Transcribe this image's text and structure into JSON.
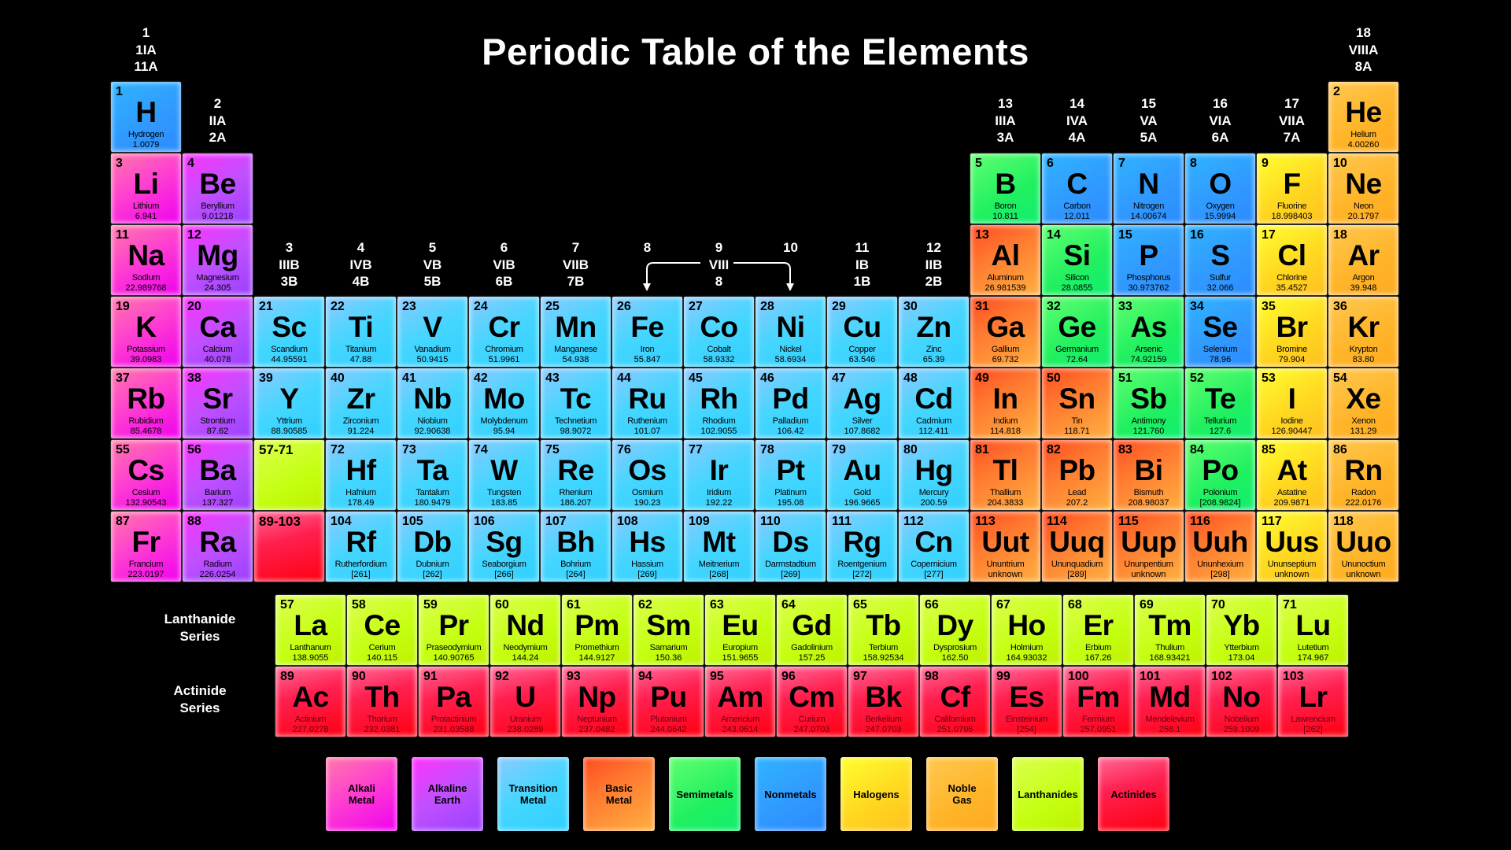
{
  "title": "Periodic Table of the Elements",
  "group_headers": [
    {
      "num": "1",
      "roman": "1IA",
      "us": "11A"
    },
    {
      "num": "2",
      "roman": "IIA",
      "us": "2A"
    },
    {
      "num": "3",
      "roman": "IIIB",
      "us": "3B"
    },
    {
      "num": "4",
      "roman": "IVB",
      "us": "4B"
    },
    {
      "num": "5",
      "roman": "VB",
      "us": "5B"
    },
    {
      "num": "6",
      "roman": "VIB",
      "us": "6B"
    },
    {
      "num": "7",
      "roman": "VIIB",
      "us": "7B"
    },
    {
      "num": "8",
      "roman": "",
      "us": ""
    },
    {
      "num": "9",
      "roman": "VIII",
      "us": "8"
    },
    {
      "num": "10",
      "roman": "",
      "us": ""
    },
    {
      "num": "11",
      "roman": "IB",
      "us": "1B"
    },
    {
      "num": "12",
      "roman": "IIB",
      "us": "2B"
    },
    {
      "num": "13",
      "roman": "IIIA",
      "us": "3A"
    },
    {
      "num": "14",
      "roman": "IVA",
      "us": "4A"
    },
    {
      "num": "15",
      "roman": "VA",
      "us": "5A"
    },
    {
      "num": "16",
      "roman": "VIA",
      "us": "6A"
    },
    {
      "num": "17",
      "roman": "VIIA",
      "us": "7A"
    },
    {
      "num": "18",
      "roman": "VIIIA",
      "us": "8A"
    }
  ],
  "categories": {
    "a": {
      "label": "Alkali\nMetal",
      "color": "#ff40d0"
    },
    "e": {
      "label": "Alkaline\nEarth",
      "color": "#b048ff"
    },
    "t": {
      "label": "Transition\nMetal",
      "color": "#40d4ff"
    },
    "b": {
      "label": "Basic\nMetal",
      "color": "#ff7a30"
    },
    "s": {
      "label": "Semimetals",
      "color": "#20f060"
    },
    "n": {
      "label": "Nonmetals",
      "color": "#3098ff"
    },
    "h": {
      "label": "Halogens",
      "color": "#ffd820"
    },
    "g": {
      "label": "Noble\nGas",
      "color": "#ffb428"
    },
    "l": {
      "label": "Lanthanides",
      "color": "#c4ff10"
    },
    "c": {
      "label": "Actinides",
      "color": "#ff1030"
    }
  },
  "legend_order": [
    "a",
    "e",
    "t",
    "b",
    "s",
    "n",
    "h",
    "g",
    "l",
    "c"
  ],
  "placeholders": [
    {
      "label": "57-71",
      "cat": "l"
    },
    {
      "label": "89-103",
      "cat": "c"
    }
  ],
  "elements": [
    {
      "n": "1",
      "s": "H",
      "name": "Hydrogen",
      "mass": "1.0079",
      "cat": "n"
    },
    {
      "n": "2",
      "s": "He",
      "name": "Helium",
      "mass": "4.00260",
      "cat": "g"
    },
    {
      "n": "3",
      "s": "Li",
      "name": "Lithium",
      "mass": "6.941",
      "cat": "a"
    },
    {
      "n": "4",
      "s": "Be",
      "name": "Beryllium",
      "mass": "9.01218",
      "cat": "e"
    },
    {
      "n": "5",
      "s": "B",
      "name": "Boron",
      "mass": "10.811",
      "cat": "s"
    },
    {
      "n": "6",
      "s": "C",
      "name": "Carbon",
      "mass": "12.011",
      "cat": "n"
    },
    {
      "n": "7",
      "s": "N",
      "name": "Nitrogen",
      "mass": "14.00674",
      "cat": "n"
    },
    {
      "n": "8",
      "s": "O",
      "name": "Oxygen",
      "mass": "15.9994",
      "cat": "n"
    },
    {
      "n": "9",
      "s": "F",
      "name": "Fluorine",
      "mass": "18.998403",
      "cat": "h"
    },
    {
      "n": "10",
      "s": "Ne",
      "name": "Neon",
      "mass": "20.1797",
      "cat": "g"
    },
    {
      "n": "11",
      "s": "Na",
      "name": "Sodium",
      "mass": "22.989768",
      "cat": "a"
    },
    {
      "n": "12",
      "s": "Mg",
      "name": "Magnesium",
      "mass": "24.305",
      "cat": "e"
    },
    {
      "n": "13",
      "s": "Al",
      "name": "Aluminum",
      "mass": "26.981539",
      "cat": "b"
    },
    {
      "n": "14",
      "s": "Si",
      "name": "Silicon",
      "mass": "28.0855",
      "cat": "s"
    },
    {
      "n": "15",
      "s": "P",
      "name": "Phosphorus",
      "mass": "30.973762",
      "cat": "n"
    },
    {
      "n": "16",
      "s": "S",
      "name": "Sulfur",
      "mass": "32.066",
      "cat": "n"
    },
    {
      "n": "17",
      "s": "Cl",
      "name": "Chlorine",
      "mass": "35.4527",
      "cat": "h"
    },
    {
      "n": "18",
      "s": "Ar",
      "name": "Argon",
      "mass": "39.948",
      "cat": "g"
    },
    {
      "n": "19",
      "s": "K",
      "name": "Potassium",
      "mass": "39.0983",
      "cat": "a"
    },
    {
      "n": "20",
      "s": "Ca",
      "name": "Calcium",
      "mass": "40.078",
      "cat": "e"
    },
    {
      "n": "21",
      "s": "Sc",
      "name": "Scandium",
      "mass": "44.95591",
      "cat": "t"
    },
    {
      "n": "22",
      "s": "Ti",
      "name": "Titanium",
      "mass": "47.88",
      "cat": "t"
    },
    {
      "n": "23",
      "s": "V",
      "name": "Vanadium",
      "mass": "50.9415",
      "cat": "t"
    },
    {
      "n": "24",
      "s": "Cr",
      "name": "Chromium",
      "mass": "51.9961",
      "cat": "t"
    },
    {
      "n": "25",
      "s": "Mn",
      "name": "Manganese",
      "mass": "54.938",
      "cat": "t"
    },
    {
      "n": "26",
      "s": "Fe",
      "name": "Iron",
      "mass": "55.847",
      "cat": "t"
    },
    {
      "n": "27",
      "s": "Co",
      "name": "Cobalt",
      "mass": "58.9332",
      "cat": "t"
    },
    {
      "n": "28",
      "s": "Ni",
      "name": "Nickel",
      "mass": "58.6934",
      "cat": "t"
    },
    {
      "n": "29",
      "s": "Cu",
      "name": "Copper",
      "mass": "63.546",
      "cat": "t"
    },
    {
      "n": "30",
      "s": "Zn",
      "name": "Zinc",
      "mass": "65.39",
      "cat": "t"
    },
    {
      "n": "31",
      "s": "Ga",
      "name": "Gallium",
      "mass": "69.732",
      "cat": "b"
    },
    {
      "n": "32",
      "s": "Ge",
      "name": "Germanium",
      "mass": "72.64",
      "cat": "s"
    },
    {
      "n": "33",
      "s": "As",
      "name": "Arsenic",
      "mass": "74.92159",
      "cat": "s"
    },
    {
      "n": "34",
      "s": "Se",
      "name": "Selenium",
      "mass": "78.96",
      "cat": "n"
    },
    {
      "n": "35",
      "s": "Br",
      "name": "Bromine",
      "mass": "79.904",
      "cat": "h"
    },
    {
      "n": "36",
      "s": "Kr",
      "name": "Krypton",
      "mass": "83.80",
      "cat": "g"
    },
    {
      "n": "37",
      "s": "Rb",
      "name": "Rubidium",
      "mass": "85.4678",
      "cat": "a"
    },
    {
      "n": "38",
      "s": "Sr",
      "name": "Strontium",
      "mass": "87.62",
      "cat": "e"
    },
    {
      "n": "39",
      "s": "Y",
      "name": "Yttrium",
      "mass": "88.90585",
      "cat": "t"
    },
    {
      "n": "40",
      "s": "Zr",
      "name": "Zirconium",
      "mass": "91.224",
      "cat": "t"
    },
    {
      "n": "41",
      "s": "Nb",
      "name": "Niobium",
      "mass": "92.90638",
      "cat": "t"
    },
    {
      "n": "42",
      "s": "Mo",
      "name": "Molybdenum",
      "mass": "95.94",
      "cat": "t"
    },
    {
      "n": "43",
      "s": "Tc",
      "name": "Technetium",
      "mass": "98.9072",
      "cat": "t"
    },
    {
      "n": "44",
      "s": "Ru",
      "name": "Ruthenium",
      "mass": "101.07",
      "cat": "t"
    },
    {
      "n": "45",
      "s": "Rh",
      "name": "Rhodium",
      "mass": "102.9055",
      "cat": "t"
    },
    {
      "n": "46",
      "s": "Pd",
      "name": "Palladium",
      "mass": "106.42",
      "cat": "t"
    },
    {
      "n": "47",
      "s": "Ag",
      "name": "Silver",
      "mass": "107.8682",
      "cat": "t"
    },
    {
      "n": "48",
      "s": "Cd",
      "name": "Cadmium",
      "mass": "112.411",
      "cat": "t"
    },
    {
      "n": "49",
      "s": "In",
      "name": "Indium",
      "mass": "114.818",
      "cat": "b"
    },
    {
      "n": "50",
      "s": "Sn",
      "name": "Tin",
      "mass": "118.71",
      "cat": "b"
    },
    {
      "n": "51",
      "s": "Sb",
      "name": "Antimony",
      "mass": "121.760",
      "cat": "s"
    },
    {
      "n": "52",
      "s": "Te",
      "name": "Tellurium",
      "mass": "127.6",
      "cat": "s"
    },
    {
      "n": "53",
      "s": "I",
      "name": "Iodine",
      "mass": "126.90447",
      "cat": "h"
    },
    {
      "n": "54",
      "s": "Xe",
      "name": "Xenon",
      "mass": "131.29",
      "cat": "g"
    },
    {
      "n": "55",
      "s": "Cs",
      "name": "Cesium",
      "mass": "132.90543",
      "cat": "a"
    },
    {
      "n": "56",
      "s": "Ba",
      "name": "Barium",
      "mass": "137.327",
      "cat": "e"
    },
    {
      "n": "72",
      "s": "Hf",
      "name": "Hafnium",
      "mass": "178.49",
      "cat": "t"
    },
    {
      "n": "73",
      "s": "Ta",
      "name": "Tantalum",
      "mass": "180.9479",
      "cat": "t"
    },
    {
      "n": "74",
      "s": "W",
      "name": "Tungsten",
      "mass": "183.85",
      "cat": "t"
    },
    {
      "n": "75",
      "s": "Re",
      "name": "Rhenium",
      "mass": "186.207",
      "cat": "t"
    },
    {
      "n": "76",
      "s": "Os",
      "name": "Osmium",
      "mass": "190.23",
      "cat": "t"
    },
    {
      "n": "77",
      "s": "Ir",
      "name": "Iridium",
      "mass": "192.22",
      "cat": "t"
    },
    {
      "n": "78",
      "s": "Pt",
      "name": "Platinum",
      "mass": "195.08",
      "cat": "t"
    },
    {
      "n": "79",
      "s": "Au",
      "name": "Gold",
      "mass": "196.9665",
      "cat": "t"
    },
    {
      "n": "80",
      "s": "Hg",
      "name": "Mercury",
      "mass": "200.59",
      "cat": "t"
    },
    {
      "n": "81",
      "s": "Tl",
      "name": "Thallium",
      "mass": "204.3833",
      "cat": "b"
    },
    {
      "n": "82",
      "s": "Pb",
      "name": "Lead",
      "mass": "207.2",
      "cat": "b"
    },
    {
      "n": "83",
      "s": "Bi",
      "name": "Bismuth",
      "mass": "208.98037",
      "cat": "b"
    },
    {
      "n": "84",
      "s": "Po",
      "name": "Polonium",
      "mass": "[208.9824]",
      "cat": "s"
    },
    {
      "n": "85",
      "s": "At",
      "name": "Astatine",
      "mass": "209.9871",
      "cat": "h"
    },
    {
      "n": "86",
      "s": "Rn",
      "name": "Radon",
      "mass": "222.0176",
      "cat": "g"
    },
    {
      "n": "87",
      "s": "Fr",
      "name": "Francium",
      "mass": "223.0197",
      "cat": "a"
    },
    {
      "n": "88",
      "s": "Ra",
      "name": "Radium",
      "mass": "226.0254",
      "cat": "e"
    },
    {
      "n": "104",
      "s": "Rf",
      "name": "Rutherfordium",
      "mass": "[261]",
      "cat": "t"
    },
    {
      "n": "105",
      "s": "Db",
      "name": "Dubnium",
      "mass": "[262]",
      "cat": "t"
    },
    {
      "n": "106",
      "s": "Sg",
      "name": "Seaborgium",
      "mass": "[266]",
      "cat": "t"
    },
    {
      "n": "107",
      "s": "Bh",
      "name": "Bohrium",
      "mass": "[264]",
      "cat": "t"
    },
    {
      "n": "108",
      "s": "Hs",
      "name": "Hassium",
      "mass": "[269]",
      "cat": "t"
    },
    {
      "n": "109",
      "s": "Mt",
      "name": "Meitnerium",
      "mass": "[268]",
      "cat": "t"
    },
    {
      "n": "110",
      "s": "Ds",
      "name": "Darmstadtium",
      "mass": "[269]",
      "cat": "t"
    },
    {
      "n": "111",
      "s": "Rg",
      "name": "Roentgenium",
      "mass": "[272]",
      "cat": "t"
    },
    {
      "n": "112",
      "s": "Cn",
      "name": "Copernicium",
      "mass": "[277]",
      "cat": "t"
    },
    {
      "n": "113",
      "s": "Uut",
      "name": "Ununtrium",
      "mass": "unknown",
      "cat": "b"
    },
    {
      "n": "114",
      "s": "Uuq",
      "name": "Ununquadium",
      "mass": "[289]",
      "cat": "b"
    },
    {
      "n": "115",
      "s": "Uup",
      "name": "Ununpentium",
      "mass": "unknown",
      "cat": "b"
    },
    {
      "n": "116",
      "s": "Uuh",
      "name": "Ununhexium",
      "mass": "[298]",
      "cat": "b"
    },
    {
      "n": "117",
      "s": "Uus",
      "name": "Ununseptium",
      "mass": "unknown",
      "cat": "h"
    },
    {
      "n": "118",
      "s": "Uuo",
      "name": "Ununoctium",
      "mass": "unknown",
      "cat": "g"
    }
  ],
  "lanthanide_label": "Lanthanide\nSeries",
  "actinide_label": "Actinide\nSeries",
  "lanthanides": [
    {
      "n": "57",
      "s": "La",
      "name": "Lanthanum",
      "mass": "138.9055"
    },
    {
      "n": "58",
      "s": "Ce",
      "name": "Cerium",
      "mass": "140.115"
    },
    {
      "n": "59",
      "s": "Pr",
      "name": "Praseodymium",
      "mass": "140.90765"
    },
    {
      "n": "60",
      "s": "Nd",
      "name": "Neodymium",
      "mass": "144.24"
    },
    {
      "n": "61",
      "s": "Pm",
      "name": "Promethium",
      "mass": "144.9127"
    },
    {
      "n": "62",
      "s": "Sm",
      "name": "Samarium",
      "mass": "150.36"
    },
    {
      "n": "63",
      "s": "Eu",
      "name": "Europium",
      "mass": "151.9655"
    },
    {
      "n": "64",
      "s": "Gd",
      "name": "Gadolinium",
      "mass": "157.25"
    },
    {
      "n": "65",
      "s": "Tb",
      "name": "Terbium",
      "mass": "158.92534"
    },
    {
      "n": "66",
      "s": "Dy",
      "name": "Dysprosium",
      "mass": "162.50"
    },
    {
      "n": "67",
      "s": "Ho",
      "name": "Holmium",
      "mass": "164.93032"
    },
    {
      "n": "68",
      "s": "Er",
      "name": "Erbium",
      "mass": "167.26"
    },
    {
      "n": "69",
      "s": "Tm",
      "name": "Thulium",
      "mass": "168.93421"
    },
    {
      "n": "70",
      "s": "Yb",
      "name": "Ytterbium",
      "mass": "173.04"
    },
    {
      "n": "71",
      "s": "Lu",
      "name": "Lutetium",
      "mass": "174.967"
    }
  ],
  "actinides": [
    {
      "n": "89",
      "s": "Ac",
      "name": "Actinium",
      "mass": "227.0278"
    },
    {
      "n": "90",
      "s": "Th",
      "name": "Thorium",
      "mass": "232.0381"
    },
    {
      "n": "91",
      "s": "Pa",
      "name": "Protactinium",
      "mass": "231.03588"
    },
    {
      "n": "92",
      "s": "U",
      "name": "Uranium",
      "mass": "238.0289"
    },
    {
      "n": "93",
      "s": "Np",
      "name": "Neptunium",
      "mass": "237.0482"
    },
    {
      "n": "94",
      "s": "Pu",
      "name": "Plutonium",
      "mass": "244.0642"
    },
    {
      "n": "95",
      "s": "Am",
      "name": "Americium",
      "mass": "243.0614"
    },
    {
      "n": "96",
      "s": "Cm",
      "name": "Curium",
      "mass": "247.0703"
    },
    {
      "n": "97",
      "s": "Bk",
      "name": "Berkelium",
      "mass": "247.0703"
    },
    {
      "n": "98",
      "s": "Cf",
      "name": "Californium",
      "mass": "251.0796"
    },
    {
      "n": "99",
      "s": "Es",
      "name": "Einsteinium",
      "mass": "[254]"
    },
    {
      "n": "100",
      "s": "Fm",
      "name": "Fermium",
      "mass": "257.0951"
    },
    {
      "n": "101",
      "s": "Md",
      "name": "Mendelevium",
      "mass": "258.1"
    },
    {
      "n": "102",
      "s": "No",
      "name": "Nobelium",
      "mass": "259.1009"
    },
    {
      "n": "103",
      "s": "Lr",
      "name": "Lawrencium",
      "mass": "[262]"
    }
  ]
}
